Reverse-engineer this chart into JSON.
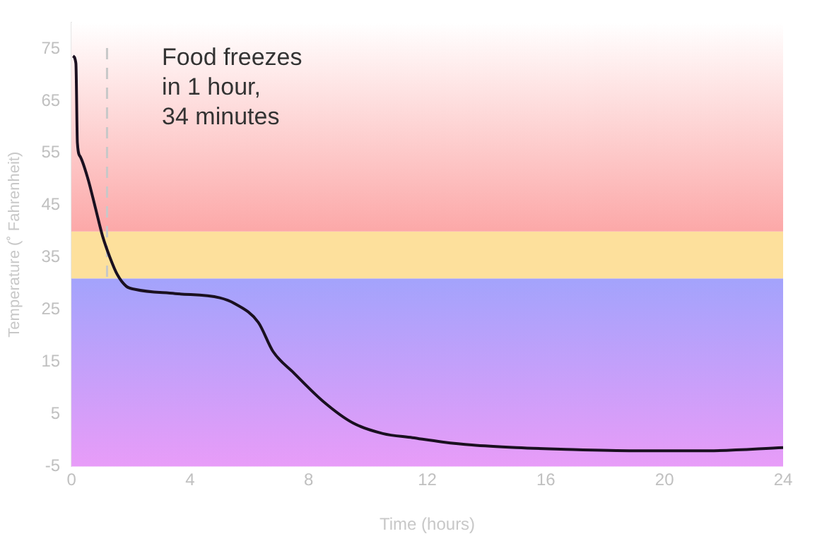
{
  "chart_data": {
    "type": "line",
    "xlabel": "Time (hours)",
    "ylabel": "Temperature (˚ Fahrenheit)",
    "annotations": [
      "Food freezes\nin 1 hour,\n34 minutes"
    ],
    "xlim": [
      0,
      24
    ],
    "xticks": [
      0,
      4,
      8,
      12,
      16,
      20,
      24
    ],
    "ylim": [
      -5,
      80
    ],
    "yticks": [
      -5,
      5,
      15,
      25,
      35,
      45,
      55,
      65,
      75
    ],
    "grid": false,
    "legend": false,
    "marker": "none",
    "line_style": "solid",
    "bands": [
      {
        "axis": "y",
        "from": -5,
        "to": 31,
        "color": "#a3a3fc"
      },
      {
        "axis": "y",
        "from": 31,
        "to": 40,
        "color": "#fde09c"
      },
      {
        "axis": "y",
        "from": 40,
        "to": 80,
        "color": "#fca8a8"
      }
    ],
    "ref_lines": [
      {
        "axis": "x",
        "value": 1.2,
        "color": "#c8c8c8",
        "line_style": "dashed"
      }
    ],
    "series": [
      {
        "color": "#1a1020",
        "x": [
          0.05,
          0.15,
          0.2,
          0.3,
          0.55,
          0.8,
          1.05,
          1.3,
          1.55,
          1.85,
          2.15,
          3.5,
          5,
          5.5,
          6.3,
          6.8,
          7.5,
          8.5,
          9.5,
          10.5,
          11.5,
          12.5,
          13.5,
          15,
          16.5,
          19,
          21.5,
          24
        ],
        "values": [
          73.6,
          72.2,
          57,
          54.3,
          50.2,
          44.7,
          39.1,
          35,
          31.7,
          29.5,
          28.9,
          28.1,
          27.3,
          26.2,
          22.6,
          17,
          12.9,
          7.4,
          3.3,
          1.3,
          0.5,
          -0.3,
          -0.9,
          -1.4,
          -1.7,
          -2,
          -2,
          -1.4
        ]
      }
    ]
  }
}
